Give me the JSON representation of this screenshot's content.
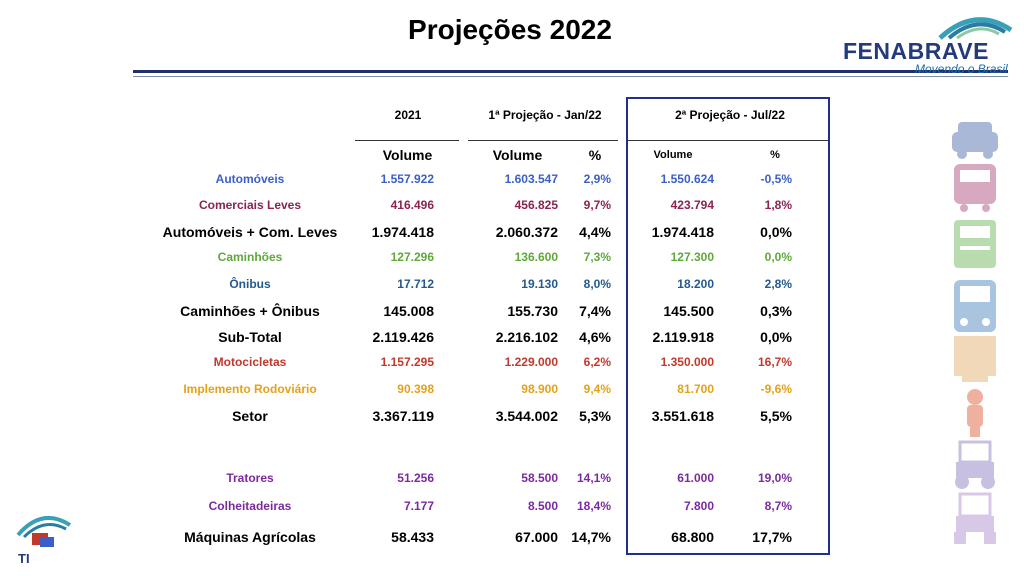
{
  "title": "Projeções 2022",
  "logo": {
    "name": "FENABRAVE",
    "tagline": "Movendo o Brasil"
  },
  "bottom_logo": {
    "label": "TI"
  },
  "headers": {
    "col_2021": "2021",
    "proj1": "1ª Projeção - Jan/22",
    "proj2": "2ª Projeção - Jul/22",
    "volume": "Volume",
    "pct": "%"
  },
  "rows": [
    {
      "label": "Automóveis",
      "v2021": "1.557.922",
      "v1": "1.603.547",
      "p1": "2,9%",
      "v2": "1.550.624",
      "p2": "-0,5%",
      "color": "#3a5fc8",
      "style": "normal"
    },
    {
      "label": "Comerciais Leves",
      "v2021": "416.496",
      "v1": "456.825",
      "p1": "9,7%",
      "v2": "423.794",
      "p2": "1,8%",
      "color": "#8b2252",
      "style": "normal"
    },
    {
      "label": "Automóveis + Com. Leves",
      "v2021": "1.974.418",
      "v1": "2.060.372",
      "p1": "4,4%",
      "v2": "1.974.418",
      "p2": "0,0%",
      "color": "#000000",
      "style": "big"
    },
    {
      "label": "Caminhões",
      "v2021": "127.296",
      "v1": "136.600",
      "p1": "7,3%",
      "v2": "127.300",
      "p2": "0,0%",
      "color": "#5fa83a",
      "style": "normal"
    },
    {
      "label": "Ônibus",
      "v2021": "17.712",
      "v1": "19.130",
      "p1": "8,0%",
      "v2": "18.200",
      "p2": "2,8%",
      "color": "#235a8c",
      "style": "normal"
    },
    {
      "label": "Caminhões + Ônibus",
      "v2021": "145.008",
      "v1": "155.730",
      "p1": "7,4%",
      "v2": "145.500",
      "p2": "0,3%",
      "color": "#000000",
      "style": "big"
    },
    {
      "label": "Sub-Total",
      "v2021": "2.119.426",
      "v1": "2.216.102",
      "p1": "4,6%",
      "v2": "2.119.918",
      "p2": "0,0%",
      "color": "#000000",
      "style": "big"
    },
    {
      "label": "Motocicletas",
      "v2021": "1.157.295",
      "v1": "1.229.000",
      "p1": "6,2%",
      "v2": "1.350.000",
      "p2": "16,7%",
      "color": "#c0392b",
      "style": "normal"
    },
    {
      "label": "Implemento Rodoviário",
      "v2021": "90.398",
      "v1": "98.900",
      "p1": "9,4%",
      "v2": "81.700",
      "p2": "-9,6%",
      "color": "#e3a21a",
      "style": "normal"
    },
    {
      "label": "Setor",
      "v2021": "3.367.119",
      "v1": "3.544.002",
      "p1": "5,3%",
      "v2": "3.551.618",
      "p2": "5,5%",
      "color": "#000000",
      "style": "big"
    },
    {
      "label": "Tratores",
      "v2021": "51.256",
      "v1": "58.500",
      "p1": "14,1%",
      "v2": "61.000",
      "p2": "19,0%",
      "color": "#7b2a9e",
      "style": "normal"
    },
    {
      "label": "Colheitadeiras",
      "v2021": "7.177",
      "v1": "8.500",
      "p1": "18,4%",
      "v2": "7.800",
      "p2": "8,7%",
      "color": "#7b2a9e",
      "style": "normal"
    },
    {
      "label": "Máquinas Agrícolas",
      "v2021": "58.433",
      "v1": "67.000",
      "p1": "14,7%",
      "v2": "68.800",
      "p2": "17,7%",
      "color": "#000000",
      "style": "big"
    }
  ],
  "side_icons": [
    {
      "icon": "car-icon",
      "color": "#aab8d8"
    },
    {
      "icon": "van-icon",
      "color": "#d8a8c0"
    },
    {
      "icon": "truck-icon",
      "color": "#b8dcb0"
    },
    {
      "icon": "bus-icon",
      "color": "#a8c4e0"
    },
    {
      "icon": "trailer-icon",
      "color": "#f0d8b8"
    },
    {
      "icon": "motorcycle-icon",
      "color": "#f0b0a0"
    },
    {
      "icon": "tractor-icon",
      "color": "#c8c0e0"
    },
    {
      "icon": "harvester-icon",
      "color": "#d8c8e8"
    }
  ]
}
